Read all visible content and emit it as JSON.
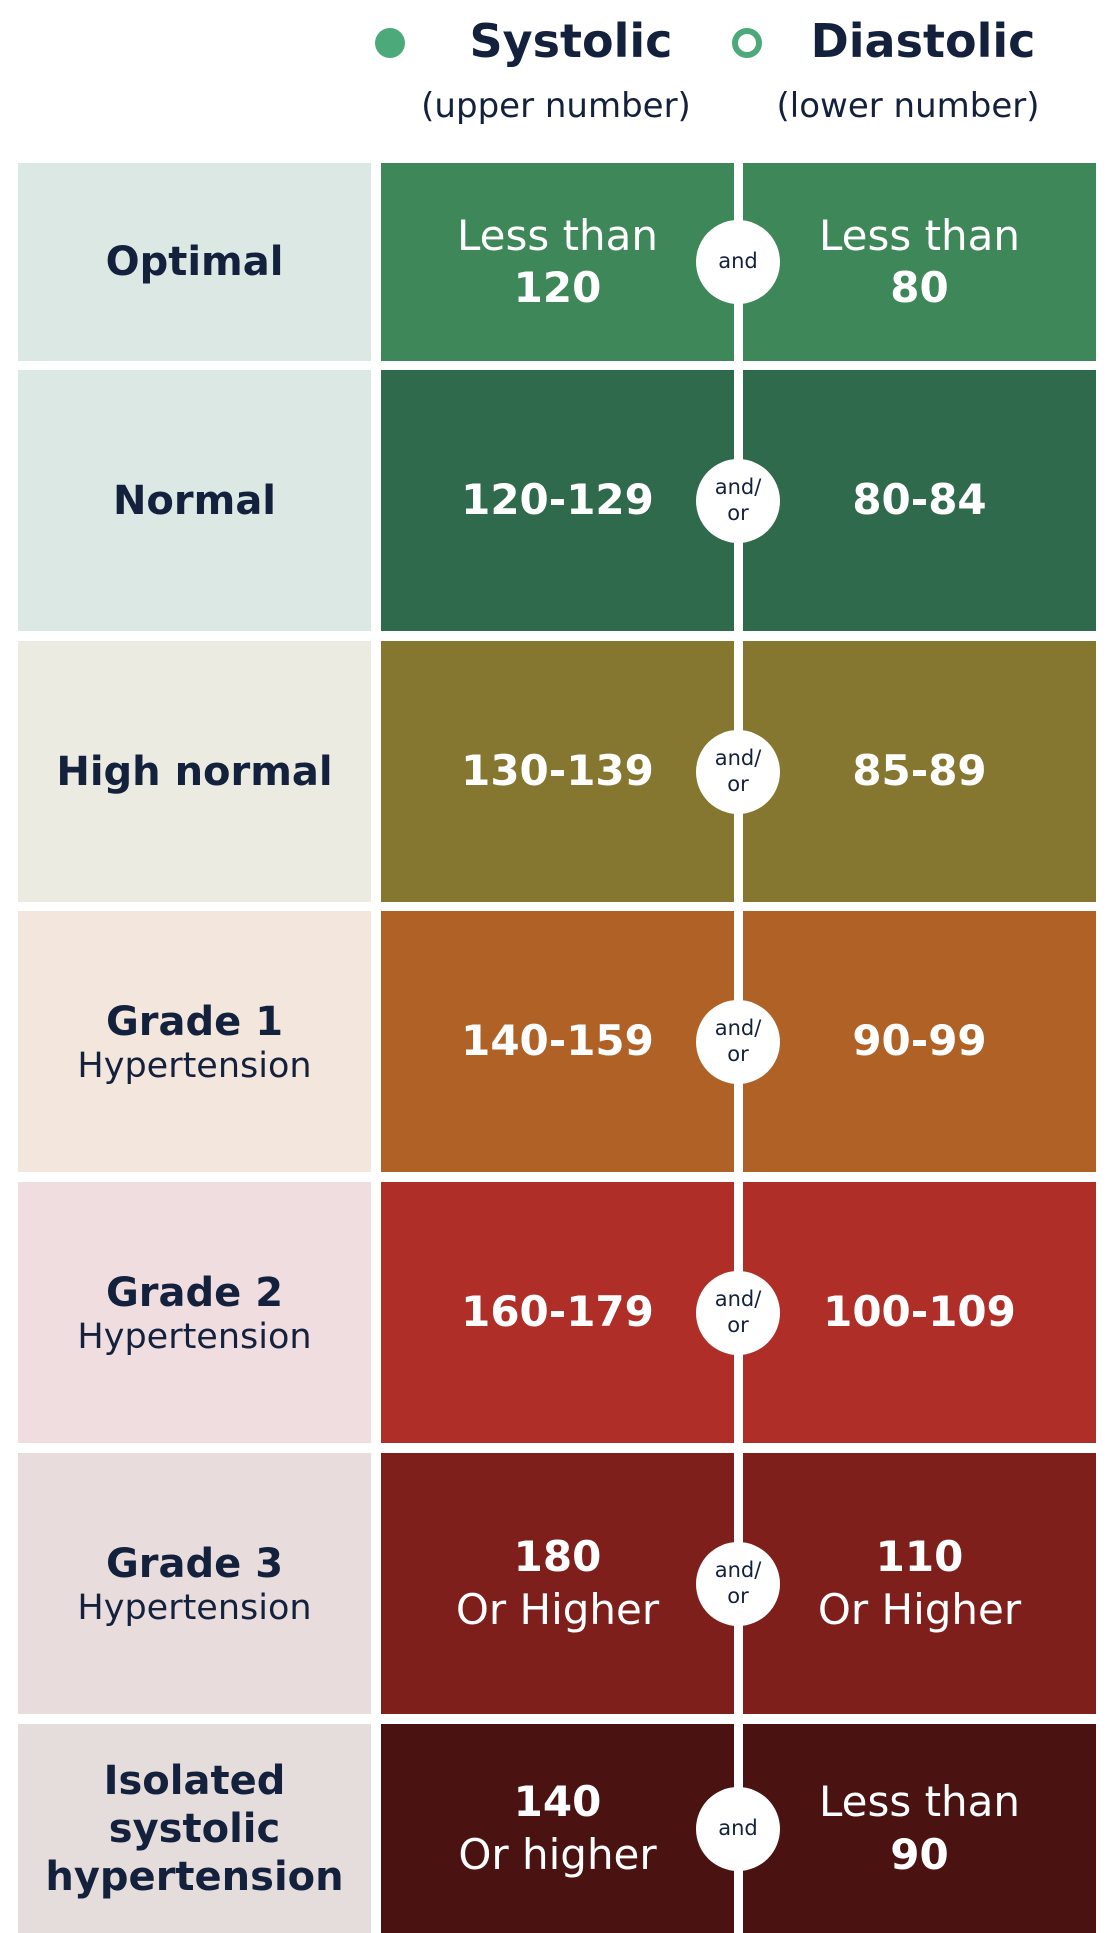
{
  "header": {
    "systolic": {
      "title": "Systolic",
      "subtitle": "(upper number)"
    },
    "diastolic": {
      "title": "Diastolic",
      "subtitle": "(lower number)"
    }
  },
  "rows": [
    {
      "label": "Optimal",
      "label_color": "#dce8e4",
      "color": "#3d8759",
      "systolic": {
        "prefix": "Less than",
        "value": "120"
      },
      "connector": [
        "and"
      ],
      "diastolic": {
        "prefix": "Less than",
        "value": "80"
      }
    },
    {
      "label": "Normal",
      "label_color": "#dce8e4",
      "color": "#2e6a4b",
      "systolic": {
        "value": "120-129"
      },
      "connector": [
        "and/",
        "or"
      ],
      "diastolic": {
        "value": "80-84"
      }
    },
    {
      "label": "High normal",
      "label_color": "#ecebe1",
      "color": "#85772f",
      "systolic": {
        "value": "130-139"
      },
      "connector": [
        "and/",
        "or"
      ],
      "diastolic": {
        "value": "85-89"
      }
    },
    {
      "label": "Grade 1",
      "sublabel": "Hypertension",
      "label_color": "#f3e6dc",
      "color": "#b06226",
      "systolic": {
        "value": "140-159"
      },
      "connector": [
        "and/",
        "or"
      ],
      "diastolic": {
        "value": "90-99"
      }
    },
    {
      "label": "Grade 2",
      "sublabel": "Hypertension",
      "label_color": "#f0dde0",
      "color": "#b02e28",
      "systolic": {
        "value": "160-179"
      },
      "connector": [
        "and/",
        "or"
      ],
      "diastolic": {
        "value": "100-109"
      }
    },
    {
      "label": "Grade 3",
      "sublabel": "Hypertension",
      "label_color": "#e9dcdc",
      "color": "#7e1f1b",
      "systolic": {
        "value": "180",
        "suffix": "Or Higher"
      },
      "connector": [
        "and/",
        "or"
      ],
      "diastolic": {
        "value": "110",
        "suffix": "Or Higher"
      }
    },
    {
      "label": "Isolated systolic hypertension",
      "label_color": "#e5dcdc",
      "color": "#4a1210",
      "systolic": {
        "value": "140",
        "suffix": "Or higher"
      },
      "connector": [
        "and"
      ],
      "diastolic": {
        "prefix": "Less than",
        "value": "90"
      }
    }
  ]
}
